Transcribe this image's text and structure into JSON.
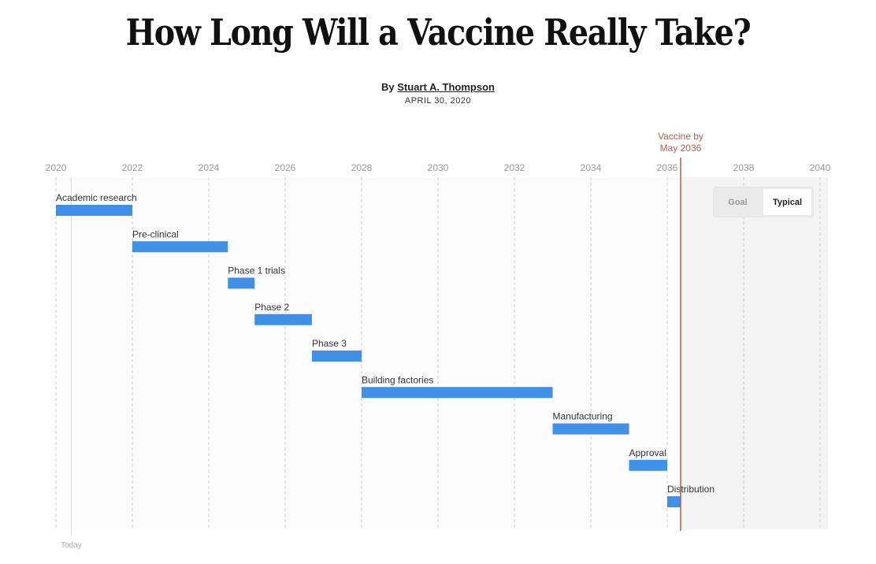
{
  "headline": "How Long Will a Vaccine Really Take?",
  "byline": {
    "prefix": "By",
    "author": "Stuart A. Thompson"
  },
  "date": "APRIL 30, 2020",
  "toggle": {
    "options": [
      "Goal",
      "Typical"
    ],
    "selected": "Typical"
  },
  "colors": {
    "bar": "#4190e8",
    "marker": "#b75b52",
    "text": "#333333",
    "tick": "#999999"
  },
  "chart_data": {
    "type": "bar",
    "orientation": "horizontal-timeline",
    "xlim": [
      2020,
      2040
    ],
    "xticks": [
      2020,
      2022,
      2024,
      2026,
      2028,
      2030,
      2032,
      2034,
      2036,
      2038,
      2040
    ],
    "grid": true,
    "today": {
      "x": 2020.4,
      "label": "Today"
    },
    "marker": {
      "x": 2036.35,
      "label_line1": "Vaccine by",
      "label_line2": "May 2036"
    },
    "stages": [
      {
        "name": "Academic research",
        "start": 2020,
        "end": 2022
      },
      {
        "name": "Pre-clinical",
        "start": 2022,
        "end": 2024.5
      },
      {
        "name": "Phase 1 trials",
        "start": 2024.5,
        "end": 2025.2
      },
      {
        "name": "Phase 2",
        "start": 2025.2,
        "end": 2026.7
      },
      {
        "name": "Phase 3",
        "start": 2026.7,
        "end": 2028
      },
      {
        "name": "Building factories",
        "start": 2028,
        "end": 2033
      },
      {
        "name": "Manufacturing",
        "start": 2033,
        "end": 2035
      },
      {
        "name": "Approval",
        "start": 2035,
        "end": 2036
      },
      {
        "name": "Distribution",
        "start": 2036,
        "end": 2036.35
      }
    ]
  }
}
